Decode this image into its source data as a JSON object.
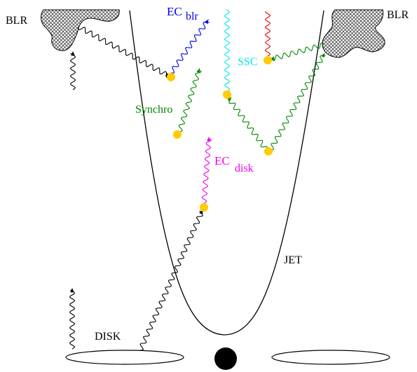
{
  "labels": {
    "blr_left": "BLR",
    "blr_right": "BLR",
    "ec_blr_main": "EC",
    "ec_blr_sub": "blr",
    "ssc": "SSC",
    "synchro": "Synchro",
    "ec_disk_main": "EC",
    "ec_disk_sub": "disk",
    "jet": "JET",
    "disk": "DISK"
  },
  "colors": {
    "black": "#000000",
    "ec_blr": "#0000ee",
    "ssc": "#00e5ee",
    "synchro": "#008800",
    "ec_disk": "#ee00ee",
    "ssc_outgoing": "#ee0000",
    "electron": "#ffcc00",
    "blr_fill": "#9a9a9a"
  }
}
